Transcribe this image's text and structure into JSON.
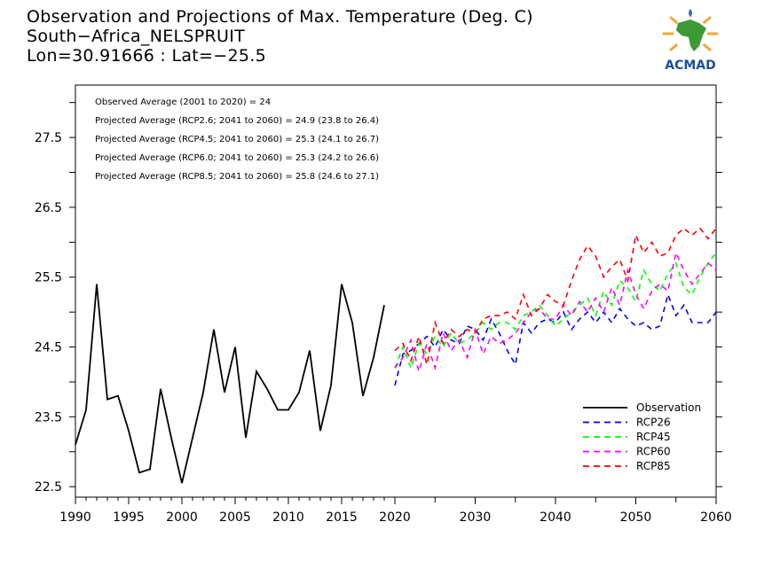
{
  "titles": {
    "line1": "Observation and Projections of Max. Temperature (Deg. C)",
    "line2": "South−Africa_NELSPRUIT",
    "line3": "Lon=30.91666 : Lat=−25.5"
  },
  "logo": {
    "text": "ACMAD"
  },
  "stats": [
    "Observed Average (2001 to 2020) = 24",
    "Projected Average (RCP2.6; 2041 to 2060) = 24.9 (23.8 to 26.4)",
    "Projected Average (RCP4.5; 2041 to 2060) = 25.3 (24.1 to 26.7)",
    "Projected Average (RCP6.0; 2041 to 2060) = 25.3 (24.2 to 26.6)",
    "Projected Average (RCP8.5; 2041 to 2060) = 25.8 (24.6 to 27.1)"
  ],
  "chart_data": {
    "type": "line",
    "title": "Observation and Projections of Max. Temperature (Deg. C)",
    "ylim": [
      22.35,
      28.25
    ],
    "yticks": [
      22.5,
      23.5,
      24.5,
      25.5,
      26.5,
      27.5
    ],
    "ytick_labels": [
      "22.5",
      "23.5",
      "24.5",
      "25.5",
      "26.5",
      "27.5"
    ],
    "xlim": [
      1990,
      2060
    ],
    "xticks_early": [
      1990,
      1995,
      2000,
      2005,
      2010,
      2015,
      2020
    ],
    "xticks_late": [
      2020,
      2030,
      2040,
      2050,
      2060
    ],
    "xtick_labels": [
      "1990",
      "1995",
      "2000",
      "2005",
      "2010",
      "2015",
      "2020",
      "2030",
      "2040",
      "2050",
      "2060"
    ],
    "legend_position": "bottom-right",
    "series": [
      {
        "name": "Observation",
        "color": "#000000",
        "dashed": false,
        "x": [
          1990,
          1991,
          1992,
          1993,
          1994,
          1995,
          1996,
          1997,
          1998,
          1999,
          2000,
          2001,
          2002,
          2003,
          2004,
          2005,
          2006,
          2007,
          2008,
          2009,
          2010,
          2011,
          2012,
          2013,
          2014,
          2015,
          2016,
          2017,
          2018,
          2019,
          2020
        ],
        "y": [
          23.1,
          23.6,
          25.4,
          23.75,
          23.8,
          23.3,
          22.7,
          22.75,
          23.9,
          23.2,
          22.55,
          23.2,
          23.85,
          24.75,
          23.85,
          24.5,
          23.2,
          24.15,
          23.9,
          23.6,
          23.6,
          23.85,
          24.45,
          23.3,
          23.95,
          25.4,
          24.85,
          23.8,
          24.35,
          25.1,
          null
        ]
      },
      {
        "name": "RCP26",
        "color": "#0000ff",
        "dashed": true,
        "x": [
          2020,
          2021,
          2022,
          2023,
          2024,
          2025,
          2026,
          2027,
          2028,
          2029,
          2030,
          2031,
          2032,
          2033,
          2034,
          2035,
          2036,
          2037,
          2038,
          2039,
          2040,
          2041,
          2042,
          2043,
          2044,
          2045,
          2046,
          2047,
          2048,
          2049,
          2050,
          2051,
          2052,
          2053,
          2054,
          2055,
          2056,
          2057,
          2058,
          2059,
          2060
        ],
        "y": [
          23.95,
          24.4,
          24.45,
          24.55,
          24.65,
          24.5,
          24.75,
          24.6,
          24.55,
          24.8,
          24.75,
          24.6,
          24.9,
          24.7,
          24.45,
          24.25,
          24.85,
          24.7,
          24.85,
          24.9,
          24.85,
          25.0,
          24.75,
          24.9,
          25.0,
          24.85,
          25.0,
          24.85,
          25.05,
          24.9,
          24.8,
          24.85,
          24.75,
          24.8,
          25.25,
          24.95,
          25.1,
          24.85,
          24.85,
          24.85,
          25.0
        ]
      },
      {
        "name": "RCP45",
        "color": "#00ff00",
        "dashed": true,
        "x": [
          2020,
          2021,
          2022,
          2023,
          2024,
          2025,
          2026,
          2027,
          2028,
          2029,
          2030,
          2031,
          2032,
          2033,
          2034,
          2035,
          2036,
          2037,
          2038,
          2039,
          2040,
          2041,
          2042,
          2043,
          2044,
          2045,
          2046,
          2047,
          2048,
          2049,
          2050,
          2051,
          2052,
          2053,
          2054,
          2055,
          2056,
          2057,
          2058,
          2059,
          2060
        ],
        "y": [
          24.2,
          24.5,
          24.2,
          24.55,
          24.4,
          24.65,
          24.5,
          24.7,
          24.55,
          24.6,
          24.7,
          24.85,
          24.75,
          24.85,
          24.85,
          24.75,
          24.95,
          25.0,
          25.1,
          24.95,
          24.8,
          24.9,
          25.0,
          25.1,
          25.2,
          24.95,
          25.3,
          25.1,
          25.45,
          25.35,
          25.15,
          25.6,
          25.4,
          25.3,
          25.55,
          25.7,
          25.35,
          25.25,
          25.5,
          25.7,
          25.85
        ]
      },
      {
        "name": "RCP60",
        "color": "#ff00ff",
        "dashed": true,
        "x": [
          2020,
          2021,
          2022,
          2023,
          2024,
          2025,
          2026,
          2027,
          2028,
          2029,
          2030,
          2031,
          2032,
          2033,
          2034,
          2035,
          2036,
          2037,
          2038,
          2039,
          2040,
          2041,
          2042,
          2043,
          2044,
          2045,
          2046,
          2047,
          2048,
          2049,
          2050,
          2051,
          2052,
          2053,
          2054,
          2055,
          2056,
          2057,
          2058,
          2059,
          2060
        ],
        "y": [
          24.2,
          24.35,
          24.6,
          24.15,
          24.55,
          24.2,
          24.7,
          24.45,
          24.6,
          24.35,
          24.75,
          24.4,
          24.65,
          24.55,
          24.6,
          24.7,
          24.85,
          25.0,
          25.05,
          24.9,
          24.9,
          25.1,
          24.95,
          25.15,
          25.0,
          25.2,
          25.0,
          25.35,
          25.1,
          25.6,
          25.25,
          25.05,
          25.3,
          25.4,
          25.3,
          25.85,
          25.6,
          25.4,
          25.55,
          25.7,
          25.6
        ]
      },
      {
        "name": "RCP85",
        "color": "#ff0000",
        "dashed": true,
        "x": [
          2020,
          2021,
          2022,
          2023,
          2024,
          2025,
          2026,
          2027,
          2028,
          2029,
          2030,
          2031,
          2032,
          2033,
          2034,
          2035,
          2036,
          2037,
          2038,
          2039,
          2040,
          2041,
          2042,
          2043,
          2044,
          2045,
          2046,
          2047,
          2048,
          2049,
          2050,
          2051,
          2052,
          2053,
          2054,
          2055,
          2056,
          2057,
          2058,
          2059,
          2060
        ],
        "y": [
          24.45,
          24.55,
          24.3,
          24.65,
          24.25,
          24.85,
          24.55,
          24.75,
          24.65,
          24.75,
          24.7,
          24.9,
          24.95,
          24.95,
          25.0,
          24.9,
          25.25,
          24.95,
          25.05,
          25.25,
          25.15,
          25.1,
          25.45,
          25.75,
          25.95,
          25.8,
          25.5,
          25.65,
          25.75,
          25.45,
          26.1,
          25.85,
          26.0,
          25.8,
          25.85,
          26.1,
          26.2,
          26.1,
          26.2,
          26.05,
          26.2
        ]
      }
    ]
  }
}
